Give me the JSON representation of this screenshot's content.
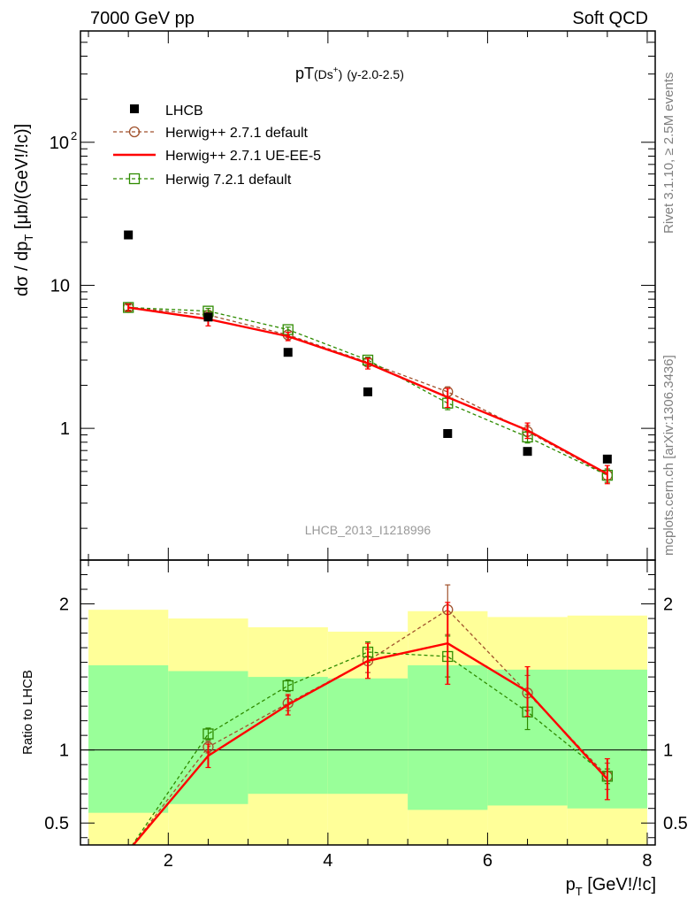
{
  "header": {
    "left": "7000 GeV pp",
    "right": "Soft QCD"
  },
  "side_text": {
    "top": "Rivet 3.1.10, ≥ 2.5M events",
    "bottom": "mcplots.cern.ch [arXiv:1306.3436]"
  },
  "colors": {
    "lhcb": "#000000",
    "herwigpp_default": "#a0522d",
    "herwigpp_ueee5": "#ff0000",
    "herwig7_default": "#2e8b00",
    "band_inner": "#99ff99",
    "band_outer": "#ffff99"
  },
  "chart_data": [
    {
      "type": "scatter",
      "title": "pT(Ds⁺) (y-2.0-2.5)",
      "title_parts": {
        "main": "pT",
        "paren": "(Ds",
        "sup": "+",
        "close": ")",
        "range": "(y-2.0-2.5)"
      },
      "ylabel": "dσ / dp_T [μb/(GeV!/!c)]",
      "ylabel_parts": {
        "pre": "dσ / dp",
        "sub": "T",
        "post": " [μb/(GeV!/!c)]"
      },
      "y_scale": "log",
      "xlim": [
        0.9,
        8.1
      ],
      "ylim": [
        0.12,
        600
      ],
      "y_ticks": [
        {
          "value": 1,
          "label": "1"
        },
        {
          "value": 10,
          "label": "10"
        },
        {
          "value": 100,
          "label": "10",
          "sup": "2"
        }
      ],
      "watermark": "LHCB_2013_I1218996",
      "legend_position": "top-left",
      "series": [
        {
          "name": "LHCB",
          "style": "data",
          "x": [
            1.5,
            2.5,
            3.5,
            4.5,
            5.5,
            6.5,
            7.5
          ],
          "y": [
            22.5,
            6.0,
            3.4,
            1.8,
            0.92,
            0.69,
            0.61
          ]
        },
        {
          "name": "Herwig++ 2.7.1 default",
          "style": "circle-dashed",
          "x": [
            1.5,
            2.5,
            3.5,
            4.5,
            5.5,
            6.5,
            7.5
          ],
          "y": [
            7.0,
            6.2,
            4.5,
            2.9,
            1.8,
            0.95,
            0.47
          ],
          "err": [
            0.3,
            0.3,
            0.2,
            0.15,
            0.15,
            0.1,
            0.05
          ]
        },
        {
          "name": "Herwig++ 2.7.1 UE-EE-5",
          "style": "line-solid",
          "x": [
            1.5,
            2.5,
            3.5,
            4.5,
            5.5,
            6.5,
            7.5
          ],
          "y": [
            7.0,
            5.8,
            4.4,
            2.85,
            1.65,
            0.97,
            0.48
          ],
          "err": [
            0.4,
            0.6,
            0.3,
            0.25,
            0.25,
            0.12,
            0.07
          ]
        },
        {
          "name": "Herwig 7.2.1 default",
          "style": "square-dashed",
          "x": [
            1.5,
            2.5,
            3.5,
            4.5,
            5.5,
            6.5,
            7.5
          ],
          "y": [
            7.0,
            6.6,
            4.9,
            3.0,
            1.5,
            0.87,
            0.47
          ],
          "err": [
            0.3,
            0.3,
            0.2,
            0.15,
            0.15,
            0.08,
            0.05
          ]
        }
      ]
    },
    {
      "type": "line",
      "ylabel": "Ratio to LHCB",
      "xlabel": "p_T [GeV!/!c]",
      "xlabel_parts": {
        "pre": "p",
        "sub": "T",
        "post": " [GeV!/!c]"
      },
      "xlim": [
        0.9,
        8.1
      ],
      "ylim": [
        0.35,
        2.3
      ],
      "x_ticks": [
        2,
        4,
        6,
        8
      ],
      "y_ticks": [
        {
          "value": 0.5,
          "label": "0.5"
        },
        {
          "value": 1,
          "label": "1"
        },
        {
          "value": 2,
          "label": "2"
        }
      ],
      "reference_line": 1,
      "uncertainty_bands": {
        "x_edges": [
          1,
          2,
          3,
          4,
          5,
          6,
          7,
          8
        ],
        "inner_low": [
          0.57,
          0.63,
          0.7,
          0.7,
          0.59,
          0.62,
          0.6
        ],
        "inner_high": [
          1.58,
          1.54,
          1.5,
          1.49,
          1.58,
          1.55,
          1.55
        ],
        "outer_low": [
          0.35,
          0.35,
          0.35,
          0.35,
          0.35,
          0.35,
          0.35
        ],
        "outer_high": [
          1.96,
          1.9,
          1.84,
          1.81,
          1.95,
          1.91,
          1.92
        ]
      },
      "series": [
        {
          "name": "Herwig++ 2.7.1 default",
          "style": "circle-dashed",
          "x": [
            1.5,
            2.5,
            3.5,
            4.5,
            5.5,
            6.5,
            7.5
          ],
          "y": [
            0.31,
            1.02,
            1.32,
            1.61,
            1.96,
            1.39,
            0.82
          ],
          "err": [
            0.02,
            0.04,
            0.05,
            0.08,
            0.17,
            0.12,
            0.09
          ]
        },
        {
          "name": "Herwig++ 2.7.1 UE-EE-5",
          "style": "line-solid",
          "x": [
            1.5,
            2.5,
            3.5,
            4.5,
            5.5,
            6.5,
            7.5
          ],
          "y": [
            0.31,
            0.96,
            1.31,
            1.61,
            1.73,
            1.4,
            0.8
          ],
          "err": [
            0.02,
            0.08,
            0.07,
            0.12,
            0.28,
            0.17,
            0.14
          ]
        },
        {
          "name": "Herwig 7.2.1 default",
          "style": "square-dashed",
          "x": [
            1.5,
            2.5,
            3.5,
            4.5,
            5.5,
            6.5,
            7.5
          ],
          "y": [
            0.31,
            1.11,
            1.44,
            1.67,
            1.64,
            1.26,
            0.82
          ],
          "err": [
            0.02,
            0.04,
            0.04,
            0.07,
            0.14,
            0.12,
            0.05
          ]
        }
      ]
    }
  ]
}
